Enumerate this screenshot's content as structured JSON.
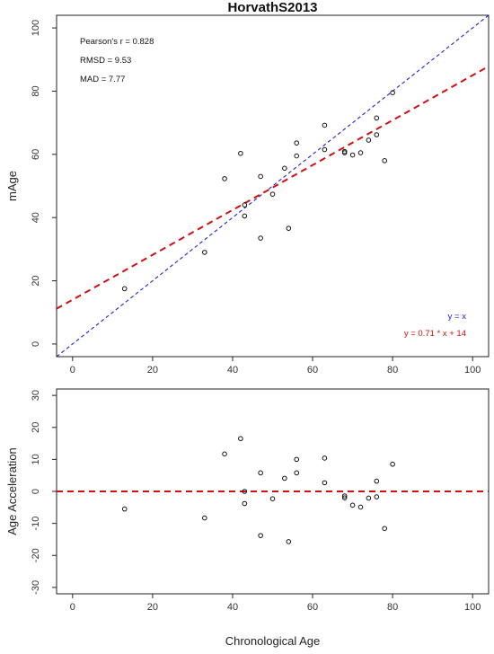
{
  "chart_data": [
    {
      "type": "scatter",
      "title": "HorvathS2013",
      "xlabel": "",
      "ylabel": "mAge",
      "xlim": [
        -4,
        104
      ],
      "ylim": [
        -4,
        104
      ],
      "xticks": [
        0,
        20,
        40,
        60,
        80,
        100
      ],
      "yticks": [
        0,
        20,
        40,
        60,
        80,
        100
      ],
      "grid": false,
      "annotations": [
        "Pearson's r = 0.828",
        "RMSD = 9.53",
        "MAD = 7.77"
      ],
      "legend_placement": "bottom-right",
      "lines": [
        {
          "label": "y = x",
          "slope": 1,
          "intercept": 0,
          "color": "#2020d0",
          "style": "dashed"
        },
        {
          "label": "y = 0.71 * x + 14",
          "slope": 0.71,
          "intercept": 14,
          "color": "#d01010",
          "style": "dashed"
        }
      ],
      "points": {
        "x": [
          13,
          33,
          38,
          42,
          43,
          43,
          47,
          47,
          50,
          53,
          54,
          56,
          56,
          63,
          63,
          68,
          68,
          70,
          72,
          74,
          76,
          76,
          78,
          80
        ],
        "y": [
          17.5,
          29,
          52.3,
          60.3,
          44,
          40.5,
          53,
          33.5,
          47.4,
          55.6,
          36.6,
          59.5,
          63.6,
          69.2,
          61.5,
          60.9,
          60.5,
          59.8,
          60.5,
          64.5,
          71.5,
          66.2,
          58,
          79.5
        ]
      }
    },
    {
      "type": "scatter",
      "title": "",
      "xlabel": "Chronological Age",
      "ylabel": "Age Acceleration",
      "xlim": [
        -4,
        104
      ],
      "ylim": [
        -32,
        32
      ],
      "xticks": [
        0,
        20,
        40,
        60,
        80,
        100
      ],
      "yticks": [
        -30,
        -20,
        -10,
        0,
        10,
        20,
        30
      ],
      "grid": false,
      "reference_line": {
        "y": 0,
        "color": "#d01010",
        "style": "dashed"
      },
      "points": {
        "x": [
          13,
          33,
          38,
          42,
          43,
          43,
          47,
          47,
          50,
          53,
          54,
          56,
          56,
          63,
          63,
          68,
          68,
          70,
          72,
          74,
          76,
          76,
          78,
          80
        ],
        "y": [
          -5.5,
          -8.3,
          11.7,
          16.5,
          -3.8,
          0,
          5.8,
          -13.8,
          -2.3,
          4.1,
          -15.7,
          5.8,
          10,
          10.4,
          2.7,
          -1.4,
          -2,
          -4.3,
          -4.9,
          -2.1,
          3.2,
          -1.7,
          -11.6,
          8.5
        ]
      }
    }
  ]
}
